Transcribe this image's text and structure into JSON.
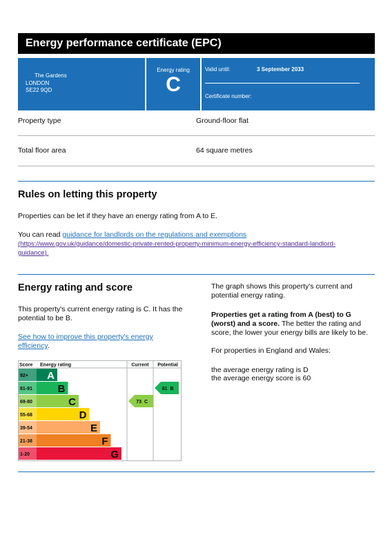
{
  "header": {
    "title": "Energy performance certificate (EPC)"
  },
  "summary": {
    "address": [
      "The Gardens",
      "LONDON",
      "SE22 9QD"
    ],
    "rating_label": "Energy rating",
    "rating": "C",
    "valid_until_label": "Valid until:",
    "valid_until": "3 September 2033",
    "certificate_number_label": "Certificate number:"
  },
  "details": {
    "rows": [
      [
        "Property type",
        "Ground-floor flat"
      ],
      [
        "Total floor area",
        "64 square metres"
      ]
    ]
  },
  "rules": {
    "heading": "Rules on letting this property",
    "text": "Properties can be let if they have an energy rating from A to E.",
    "link_intro": "You can read",
    "link_text": "guidance for landlords on the regulations and exemptions",
    "link_url": "(https://www.gov.uk/guidance/domestic-private-rented-property-minimum-energy-efficiency-standard-landlord-guidance)."
  },
  "energy": {
    "heading": "Energy rating and score",
    "text": "This property's current energy rating is C. It has the potential to be B.",
    "link_text": "See how to improve this property's energy efficiency",
    "link_suffix": ".",
    "graph_text": "The graph shows this property's current and potential energy rating.",
    "bold_text": "Properties get a rating from A (best) to G (worst) and a score.",
    "rest_text": "The better the rating and score, the lower your energy bills are likely to be.",
    "regional_intro": "For properties in England and Wales:",
    "average_rating_text": "the average energy rating is D",
    "average_score_text": "the average energy score is 60"
  },
  "chart": {
    "headers": [
      "Score",
      "Energy rating",
      "Current",
      "Potential"
    ],
    "bands": [
      {
        "range": "92+",
        "letter": "A",
        "color": "#008054"
      },
      {
        "range": "81-91",
        "letter": "B",
        "color": "#19b459"
      },
      {
        "range": "69-80",
        "letter": "C",
        "color": "#8dce46"
      },
      {
        "range": "55-68",
        "letter": "D",
        "color": "#ffd500"
      },
      {
        "range": "39-54",
        "letter": "E",
        "color": "#fcaa65"
      },
      {
        "range": "21-38",
        "letter": "F",
        "color": "#ef8023"
      },
      {
        "range": "1-20",
        "letter": "G",
        "color": "#e9153b"
      }
    ],
    "current": {
      "score": 73,
      "band": "C"
    },
    "potential": {
      "score": 81,
      "band": "B"
    }
  }
}
